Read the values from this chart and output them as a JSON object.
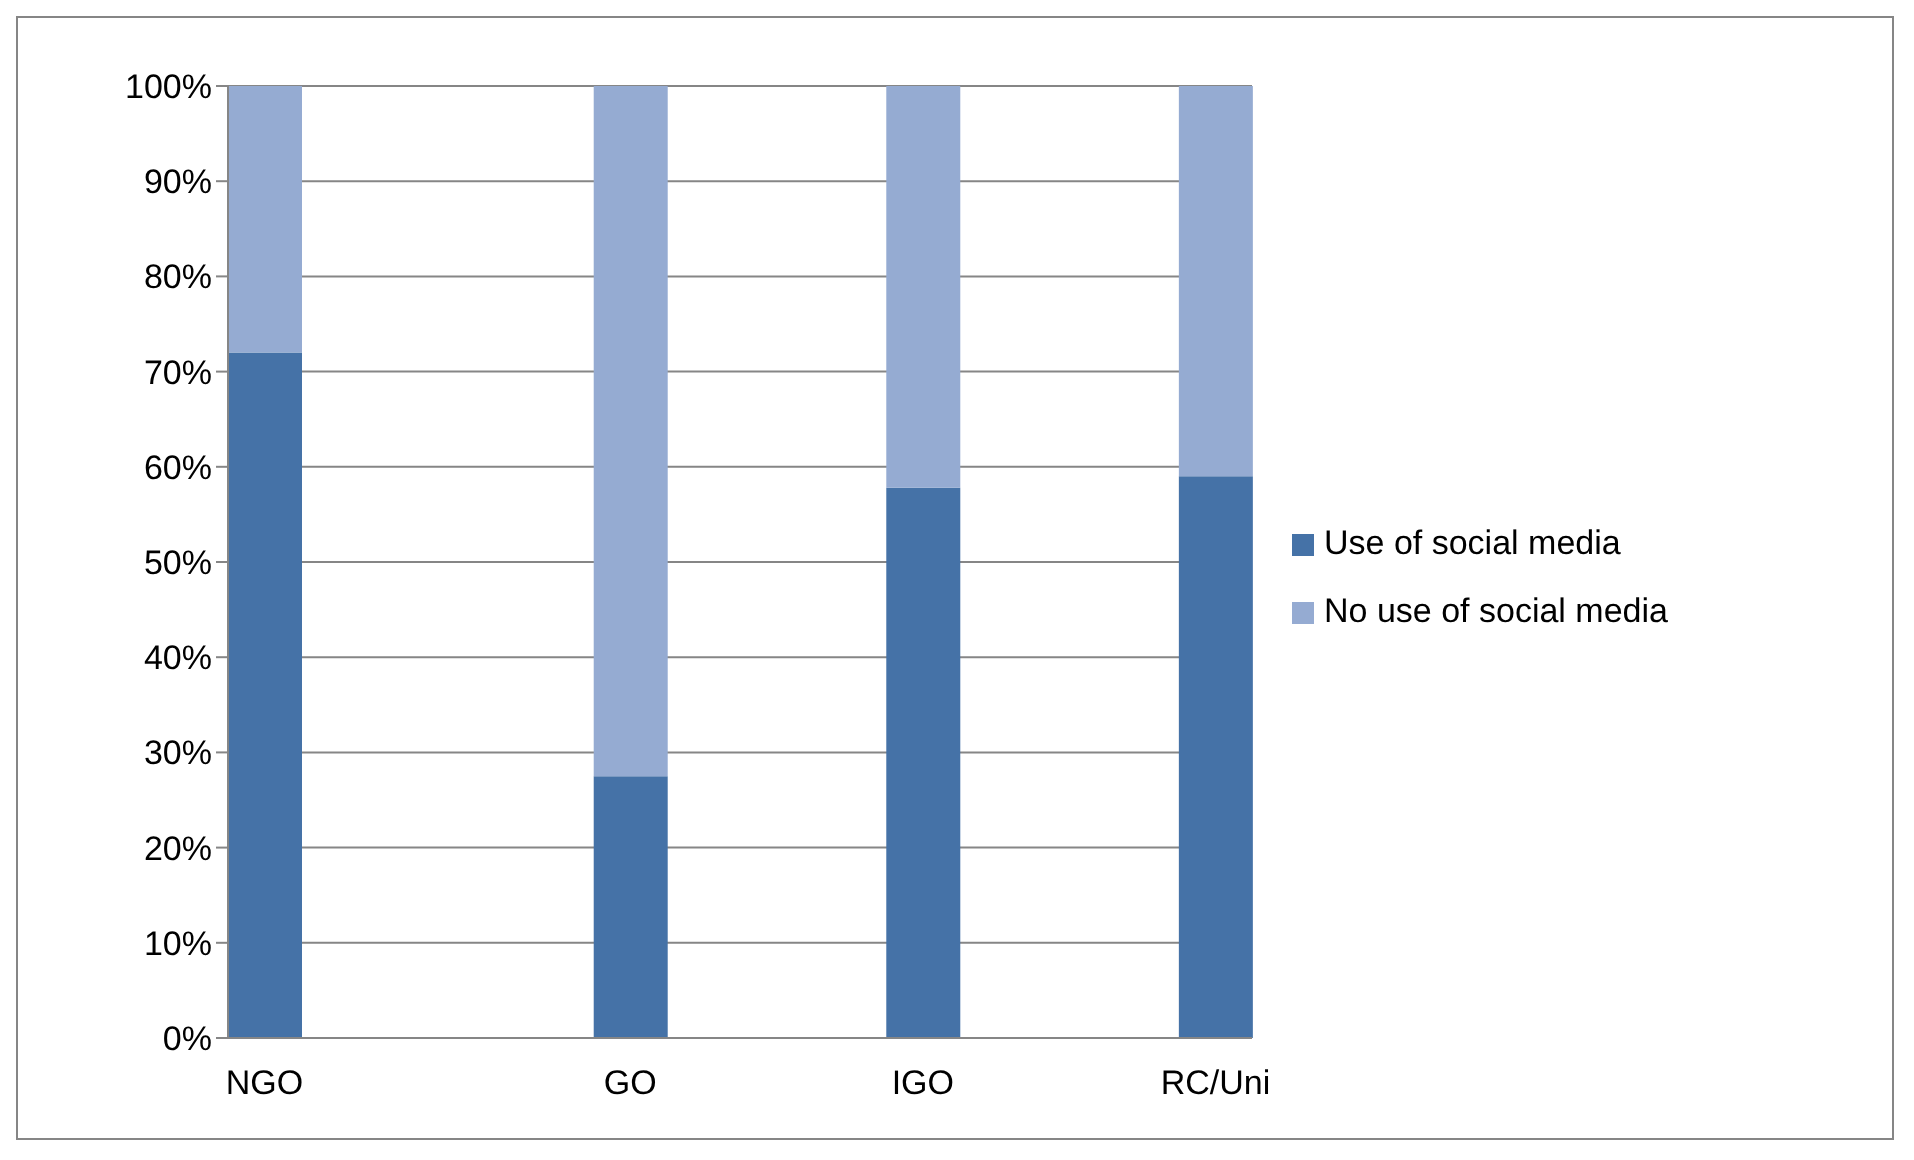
{
  "chart_data": {
    "type": "bar",
    "stacked": true,
    "categories": [
      "NGO",
      null,
      null,
      null,
      null,
      "GO",
      null,
      null,
      null,
      "IGO",
      null,
      null,
      null,
      "RC/Uni"
    ],
    "series": [
      {
        "name": "Use of social media",
        "color": "#4572a7",
        "values": [
          72,
          null,
          null,
          null,
          null,
          27.5,
          null,
          null,
          null,
          57.8,
          null,
          null,
          null,
          59
        ]
      },
      {
        "name": "No use of social media",
        "color": "#95abd2",
        "values": [
          28,
          null,
          null,
          null,
          null,
          72.5,
          null,
          null,
          null,
          42.2,
          null,
          null,
          null,
          41
        ]
      }
    ],
    "ylim": [
      0,
      100
    ],
    "yticks": [
      {
        "value": 0,
        "label": "0%"
      },
      {
        "value": 10,
        "label": "10%"
      },
      {
        "value": 20,
        "label": "20%"
      },
      {
        "value": 30,
        "label": "30%"
      },
      {
        "value": 40,
        "label": "40%"
      },
      {
        "value": 50,
        "label": "50%"
      },
      {
        "value": 60,
        "label": "60%"
      },
      {
        "value": 70,
        "label": "70%"
      },
      {
        "value": 80,
        "label": "80%"
      },
      {
        "value": 90,
        "label": "90%"
      },
      {
        "value": 100,
        "label": "100%"
      }
    ],
    "grid": "y",
    "legend": "right"
  }
}
